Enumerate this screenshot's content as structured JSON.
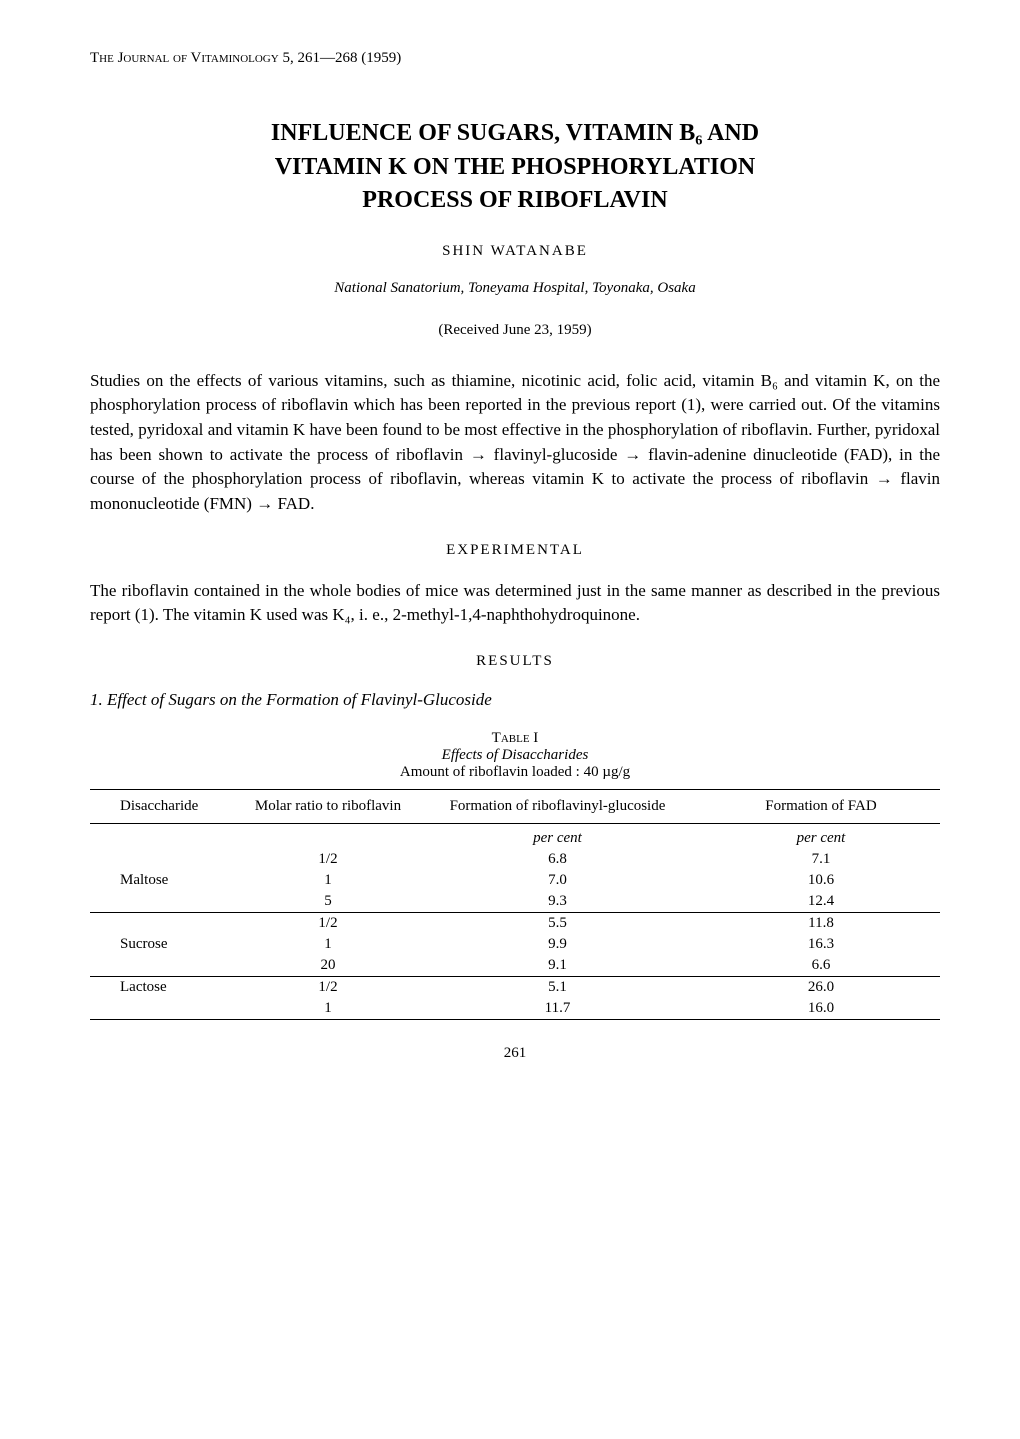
{
  "journal_ref": {
    "prefix": "The Journal of Vitaminology",
    "detail": "5, 261—268 (1959)"
  },
  "title_lines": [
    "INFLUENCE OF SUGARS, VITAMIN B₆ AND",
    "VITAMIN K ON THE PHOSPHORYLATION",
    "PROCESS OF RIBOFLAVIN"
  ],
  "author": "SHIN WATANABE",
  "affiliation": "National Sanatorium, Toneyama Hospital, Toyonaka, Osaka",
  "received": "(Received June 23, 1959)",
  "abstract": "Studies on the effects of various vitamins, such as thiamine, nicotinic acid, folic acid, vitamin B₆ and vitamin K, on the phosphorylation process of riboflavin which has been reported in the previous report (1), were carried out. Of the vitamins tested, pyridoxal and vitamin K have been found to be most effective in the phosphorylation of riboflavin.  Further, pyridoxal has been shown to activate the process of riboflavin → flavinyl-glucoside → flavin-adenine dinucleotide (FAD), in the course of the phosphorylation process of riboflavin, whereas vitamin K to activate the process of riboflavin → flavin mononucleotide (FMN) → FAD.",
  "section_experimental": "EXPERIMENTAL",
  "experimental_para": "The riboflavin contained in the whole bodies of mice was determined just in the same manner as described in the previous report (1).  The vitamin K used was K₄, i. e., 2-methyl-1,4-naphthohydroquinone.",
  "section_results": "RESULTS",
  "subsection_1": "1. Effect of Sugars on the Formation of Flavinyl-Glucoside",
  "table": {
    "label": "Table I",
    "caption": "Effects of Disaccharides",
    "subcaption": "Amount of riboflavin loaded : 40 µg/g",
    "columns": [
      "Disaccharide",
      "Molar ratio to riboflavin",
      "Formation of riboflavinyl-glucoside",
      "Formation of FAD"
    ],
    "unit_row": [
      "",
      "",
      "per cent",
      "per cent"
    ],
    "groups": [
      {
        "name": "Maltose",
        "rows": [
          [
            "1/2",
            "6.8",
            "7.1"
          ],
          [
            "1",
            "7.0",
            "10.6"
          ],
          [
            "5",
            "9.3",
            "12.4"
          ]
        ]
      },
      {
        "name": "Sucrose",
        "rows": [
          [
            "1/2",
            "5.5",
            "11.8"
          ],
          [
            "1",
            "9.9",
            "16.3"
          ],
          [
            "20",
            "9.1",
            "6.6"
          ]
        ]
      },
      {
        "name": "Lactose",
        "rows": [
          [
            "1/2",
            "5.1",
            "26.0"
          ],
          [
            "1",
            "11.7",
            "16.0"
          ]
        ]
      }
    ]
  },
  "page_number": "261",
  "colors": {
    "text": "#000000",
    "background": "#ffffff",
    "rule": "#000000"
  },
  "typography": {
    "body_size_pt": 17,
    "title_size_pt": 24,
    "small_size_pt": 15,
    "font_family": "serif"
  }
}
